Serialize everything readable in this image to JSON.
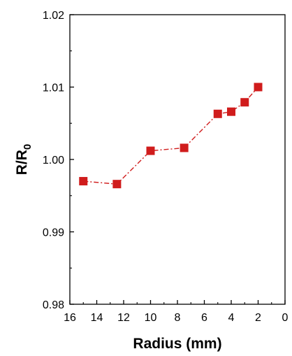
{
  "chart_data": {
    "type": "line",
    "xlabel": "Radius (mm)",
    "ylabel_main": "R/R",
    "ylabel_sub": "0",
    "xlim": [
      16,
      0
    ],
    "ylim": [
      0.98,
      1.02
    ],
    "x_ticks": [
      16,
      14,
      12,
      10,
      8,
      6,
      4,
      2,
      0
    ],
    "x_tick_labels": [
      "16",
      "14",
      "12",
      "10",
      "8",
      "6",
      "4",
      "2",
      "0"
    ],
    "y_ticks": [
      0.98,
      0.99,
      1.0,
      1.01,
      1.02
    ],
    "y_tick_labels": [
      "0.98",
      "0.99",
      "1.00",
      "1.01",
      "1.02"
    ],
    "grid": false,
    "series": [
      {
        "marker": "square",
        "line_style": "dash-dot",
        "color": "#d01c1c",
        "x": [
          15,
          12.5,
          10,
          7.5,
          5,
          4,
          3,
          2
        ],
        "y": [
          0.997,
          0.9966,
          1.0012,
          1.0016,
          1.0063,
          1.0066,
          1.0079,
          1.01
        ]
      }
    ]
  }
}
